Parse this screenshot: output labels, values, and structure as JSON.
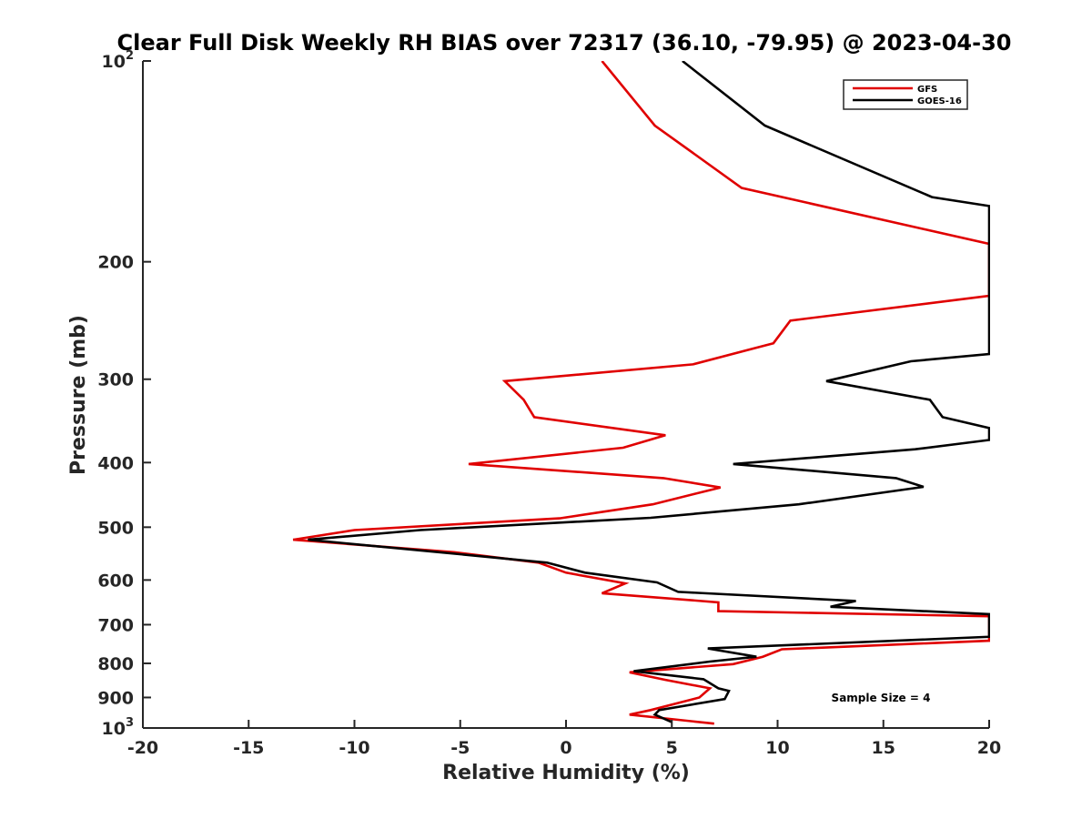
{
  "chart_data": {
    "type": "line",
    "title": "Clear Full Disk Weekly RH BIAS over 72317 (36.10, -79.95) @ 2023-04-30",
    "xlabel": "Relative Humidity (%)",
    "ylabel": "Pressure (mb)",
    "xlim": [
      -20,
      20
    ],
    "ylim": [
      1000,
      100
    ],
    "y_scale": "log",
    "y_inverted": true,
    "grid": false,
    "x_ticks": [
      "-20",
      "-15",
      "-10",
      "-5",
      "0",
      "5",
      "10",
      "15",
      "20"
    ],
    "y_ticks": [
      {
        "value": 100,
        "base": "10",
        "exp": "2"
      },
      {
        "value": 200,
        "label": "200"
      },
      {
        "value": 300,
        "label": "300"
      },
      {
        "value": 400,
        "label": "400"
      },
      {
        "value": 500,
        "label": "500"
      },
      {
        "value": 600,
        "label": "600"
      },
      {
        "value": 700,
        "label": "700"
      },
      {
        "value": 800,
        "label": "800"
      },
      {
        "value": 900,
        "label": "900"
      },
      {
        "value": 1000,
        "base": "10",
        "exp": "3"
      }
    ],
    "legend_position": "top-right",
    "series": [
      {
        "name": "GFS",
        "color": "#e00000",
        "points": [
          [
            1.7,
            100
          ],
          [
            4.2,
            125
          ],
          [
            8.3,
            155
          ],
          [
            20,
            188
          ],
          [
            20,
            225
          ],
          [
            10.6,
            245
          ],
          [
            9.8,
            265
          ],
          [
            6,
            285
          ],
          [
            -2.9,
            302
          ],
          [
            -2,
            322
          ],
          [
            -1.5,
            342
          ],
          [
            4.7,
            364
          ],
          [
            2.7,
            380
          ],
          [
            -4.6,
            402
          ],
          [
            4.6,
            422
          ],
          [
            7.3,
            436
          ],
          [
            4.1,
            462
          ],
          [
            -0.3,
            485
          ],
          [
            -10,
            505
          ],
          [
            -12.9,
            522
          ],
          [
            -5.3,
            545
          ],
          [
            -1.3,
            565
          ],
          [
            0,
            585
          ],
          [
            2.8,
            607
          ],
          [
            1.7,
            628
          ],
          [
            7.2,
            648
          ],
          [
            7.2,
            668
          ],
          [
            20,
            680
          ],
          [
            20,
            740
          ],
          [
            10.2,
            762
          ],
          [
            9.3,
            782
          ],
          [
            7.9,
            802
          ],
          [
            3,
            825
          ],
          [
            4.7,
            847
          ],
          [
            6.8,
            872
          ],
          [
            6.3,
            900
          ],
          [
            4,
            940
          ],
          [
            3,
            955
          ],
          [
            7,
            985
          ]
        ]
      },
      {
        "name": "GOES-16",
        "color": "#000000",
        "points": [
          [
            5.5,
            100
          ],
          [
            9.4,
            125
          ],
          [
            17.3,
            160
          ],
          [
            20,
            165
          ],
          [
            20,
            275
          ],
          [
            16.3,
            282
          ],
          [
            12.3,
            302
          ],
          [
            17.2,
            322
          ],
          [
            17.8,
            342
          ],
          [
            20,
            355
          ],
          [
            20,
            370
          ],
          [
            16.5,
            382
          ],
          [
            7.9,
            402
          ],
          [
            15.6,
            422
          ],
          [
            16.9,
            435
          ],
          [
            11,
            462
          ],
          [
            4,
            484
          ],
          [
            -6.9,
            505
          ],
          [
            -12.2,
            522
          ],
          [
            -6,
            545
          ],
          [
            -0.9,
            565
          ],
          [
            0.9,
            585
          ],
          [
            4.3,
            605
          ],
          [
            5.3,
            625
          ],
          [
            13.7,
            645
          ],
          [
            12.5,
            658
          ],
          [
            20,
            675
          ],
          [
            20,
            730
          ],
          [
            6.7,
            760
          ],
          [
            9,
            782
          ],
          [
            6.8,
            795
          ],
          [
            3.2,
            822
          ],
          [
            6.5,
            845
          ],
          [
            7.2,
            872
          ],
          [
            7.7,
            880
          ],
          [
            7.5,
            905
          ],
          [
            4.4,
            940
          ],
          [
            4.2,
            955
          ],
          [
            5,
            980
          ]
        ]
      }
    ],
    "annotation": "Sample Size = 4"
  }
}
